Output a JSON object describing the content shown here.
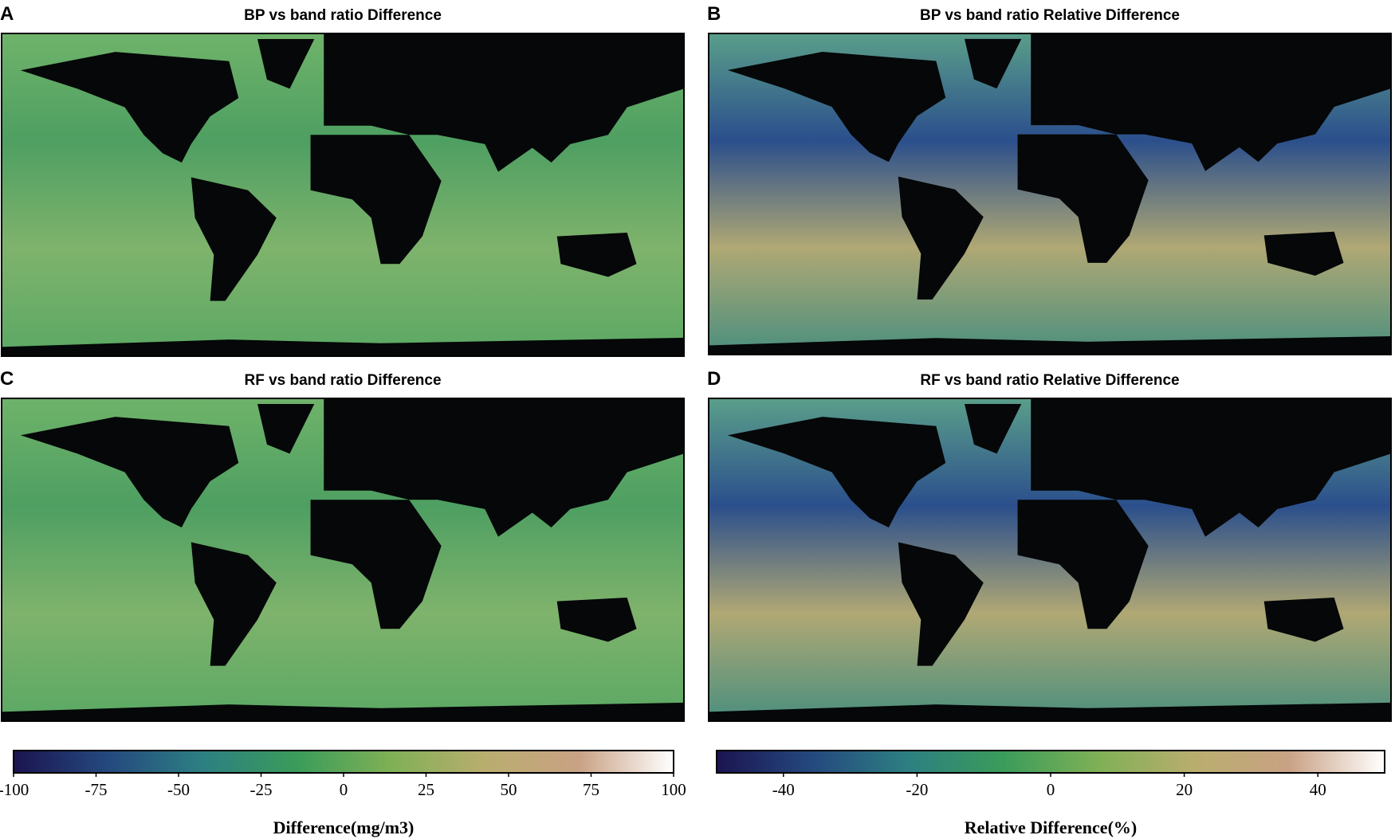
{
  "panels": [
    {
      "letter": "A",
      "title": "BP vs band ratio Difference"
    },
    {
      "letter": "B",
      "title": "BP vs band ratio Relative Difference"
    },
    {
      "letter": "C",
      "title": "RF vs band ratio Difference"
    },
    {
      "letter": "D",
      "title": "RF vs band ratio Relative Difference"
    }
  ],
  "colorbars": [
    {
      "label": "Difference(mg/m3)",
      "lim": [
        -100,
        100
      ],
      "ticks": [
        -100,
        -75,
        -50,
        -25,
        0,
        25,
        50,
        75,
        100
      ],
      "colors": [
        "#1b1450",
        "#24497f",
        "#2d7f82",
        "#3a9c5a",
        "#7fb056",
        "#b9ad6e",
        "#c9a285",
        "#ffffff"
      ]
    },
    {
      "label": "Relative Difference(%)",
      "lim": [
        -50,
        50
      ],
      "ticks": [
        -40,
        -20,
        0,
        20,
        40
      ],
      "colors": [
        "#1b1450",
        "#24497f",
        "#2d7f82",
        "#3a9c5a",
        "#7fb056",
        "#b9ad6e",
        "#c9a285",
        "#ffffff"
      ]
    }
  ]
}
